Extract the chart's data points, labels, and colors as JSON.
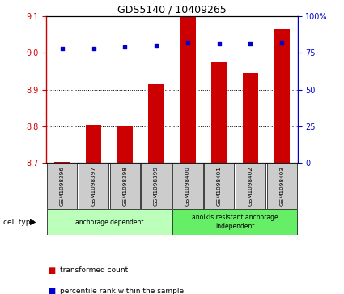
{
  "title": "GDS5140 / 10409265",
  "samples": [
    "GSM1098396",
    "GSM1098397",
    "GSM1098398",
    "GSM1098399",
    "GSM1098400",
    "GSM1098401",
    "GSM1098402",
    "GSM1098403"
  ],
  "bar_values": [
    8.703,
    8.805,
    8.803,
    8.915,
    9.1,
    8.975,
    8.945,
    9.065
  ],
  "percentile_values": [
    78,
    78,
    79,
    80,
    82,
    81,
    81,
    82
  ],
  "ylim_left": [
    8.7,
    9.1
  ],
  "ylim_right": [
    0,
    100
  ],
  "yticks_left": [
    8.7,
    8.8,
    8.9,
    9.0,
    9.1
  ],
  "yticks_right": [
    0,
    25,
    50,
    75,
    100
  ],
  "ytick_labels_right": [
    "0",
    "25",
    "50",
    "75",
    "100%"
  ],
  "bar_color": "#cc0000",
  "dot_color": "#0000cc",
  "bar_width": 0.5,
  "groups": [
    {
      "label": "anchorage dependent",
      "indices": [
        0,
        1,
        2,
        3
      ],
      "color": "#bbffbb"
    },
    {
      "label": "anoikis resistant anchorage\nindependent",
      "indices": [
        4,
        5,
        6,
        7
      ],
      "color": "#66ee66"
    }
  ],
  "cell_type_label": "cell type",
  "legend_items": [
    {
      "color": "#cc0000",
      "label": "transformed count"
    },
    {
      "color": "#0000cc",
      "label": "percentile rank within the sample"
    }
  ],
  "sample_box_color": "#cccccc",
  "tick_color_left": "#cc0000",
  "tick_color_right": "#0000cc"
}
